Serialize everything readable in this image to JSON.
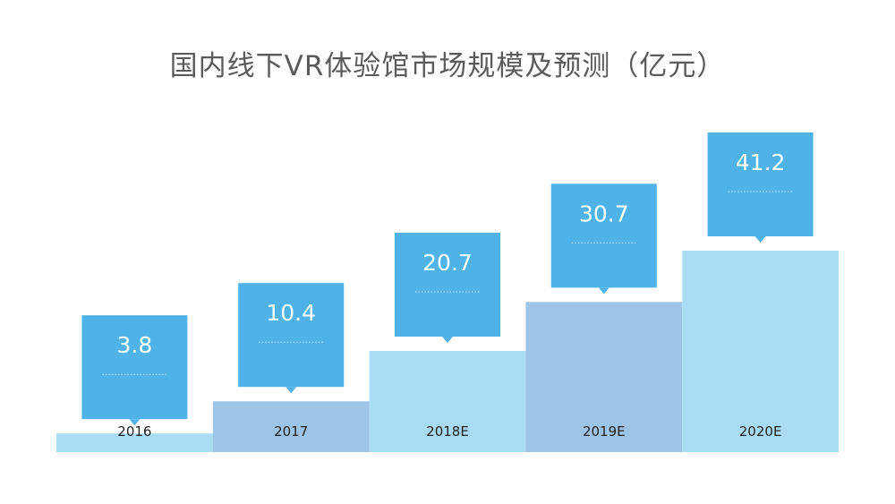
{
  "chart_data": {
    "type": "bar",
    "title": "国内线下VR体验馆市场规模及预测（亿元）",
    "xlabel": "",
    "ylabel": "",
    "categories": [
      "2016",
      "2017",
      "2018E",
      "2019E",
      "2020E"
    ],
    "values": [
      3.8,
      10.4,
      20.7,
      30.7,
      41.2
    ],
    "data_labels": [
      "3.8",
      "10.4",
      "20.7",
      "30.7",
      "41.2"
    ],
    "ylim": [
      0,
      41.2
    ],
    "grid": false,
    "legend": "none",
    "colors": {
      "bar_light": "#a9dcf2",
      "bar_dark": "#9ec4e6",
      "callout": "#4fb3e8",
      "callout_text": "#ffffff",
      "category_text": "#222222",
      "title_text": "#5b5b5b"
    }
  }
}
